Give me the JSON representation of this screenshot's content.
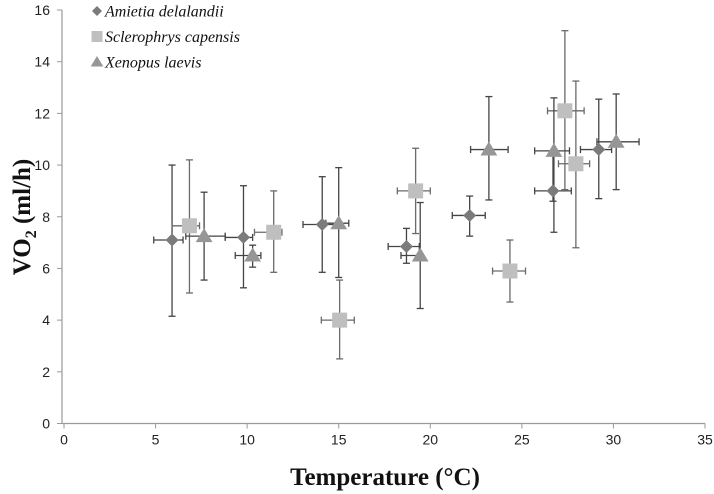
{
  "chart_data": {
    "type": "scatter",
    "title": "",
    "xlabel": "Temperature (°C)",
    "ylabel_main": "VO",
    "ylabel_sub": "2",
    "ylabel_rest": " (ml/h)",
    "xlim": [
      0,
      35
    ],
    "ylim": [
      0,
      16
    ],
    "xticks": [
      0,
      5,
      10,
      15,
      20,
      25,
      30,
      35
    ],
    "yticks": [
      0,
      2,
      4,
      6,
      8,
      10,
      12,
      14,
      16
    ],
    "grid": false,
    "legend_position": "top-left",
    "series": [
      {
        "name": "Amietia delalandii",
        "marker": "diamond",
        "color": "#7b7b7b",
        "points": [
          {
            "x": 5.9,
            "y": 7.1,
            "xlo": 4.9,
            "xhi": 6.5,
            "ylo": 4.15,
            "yhi": 10.0
          },
          {
            "x": 9.8,
            "y": 7.2,
            "xlo": 8.8,
            "xhi": 10.3,
            "ylo": 5.25,
            "yhi": 9.2
          },
          {
            "x": 14.1,
            "y": 7.7,
            "xlo": 13.05,
            "xhi": 15.1,
            "ylo": 5.85,
            "yhi": 9.55
          },
          {
            "x": 18.7,
            "y": 6.85,
            "xlo": 17.7,
            "xhi": 19.4,
            "ylo": 6.2,
            "yhi": 7.55
          },
          {
            "x": 22.15,
            "y": 8.05,
            "xlo": 21.2,
            "xhi": 23.0,
            "ylo": 7.25,
            "yhi": 8.8
          },
          {
            "x": 26.7,
            "y": 9.0,
            "xlo": 25.7,
            "xhi": 27.7,
            "ylo": 8.6,
            "yhi": 10.4
          },
          {
            "x": 29.2,
            "y": 10.6,
            "xlo": 28.2,
            "xhi": 29.9,
            "ylo": 8.7,
            "yhi": 12.55
          }
        ]
      },
      {
        "name": "Sclerophrys capensis",
        "marker": "square",
        "color": "#bfbfbf",
        "points": [
          {
            "x": 6.85,
            "y": 7.65,
            "xlo": 5.9,
            "xhi": 7.4,
            "ylo": 5.05,
            "yhi": 10.2
          },
          {
            "x": 11.45,
            "y": 7.4,
            "xlo": 10.4,
            "xhi": 11.9,
            "ylo": 5.85,
            "yhi": 9.0
          },
          {
            "x": 15.05,
            "y": 4.0,
            "xlo": 14.05,
            "xhi": 15.85,
            "ylo": 2.5,
            "yhi": 5.55
          },
          {
            "x": 19.2,
            "y": 9.0,
            "xlo": 18.2,
            "xhi": 20.0,
            "ylo": 7.35,
            "yhi": 10.65
          },
          {
            "x": 24.35,
            "y": 5.9,
            "xlo": 23.4,
            "xhi": 25.2,
            "ylo": 4.7,
            "yhi": 7.1
          },
          {
            "x": 27.35,
            "y": 12.1,
            "xlo": 26.4,
            "xhi": 28.4,
            "ylo": 9.05,
            "yhi": 15.2
          },
          {
            "x": 27.95,
            "y": 10.05,
            "xlo": 27.0,
            "xhi": 28.7,
            "ylo": 6.8,
            "yhi": 13.25
          }
        ]
      },
      {
        "name": "Xenopus laevis",
        "marker": "triangle",
        "color": "#969696",
        "points": [
          {
            "x": 7.65,
            "y": 7.25,
            "xlo": 6.65,
            "xhi": 8.8,
            "ylo": 5.55,
            "yhi": 8.95
          },
          {
            "x": 10.3,
            "y": 6.5,
            "xlo": 9.35,
            "xhi": 10.75,
            "ylo": 6.05,
            "yhi": 6.9
          },
          {
            "x": 15.0,
            "y": 7.75,
            "xlo": 14.3,
            "xhi": 15.55,
            "ylo": 5.65,
            "yhi": 9.9
          },
          {
            "x": 19.45,
            "y": 6.5,
            "xlo": 18.4,
            "xhi": 19.45,
            "ylo": 4.45,
            "yhi": 8.55
          },
          {
            "x": 23.2,
            "y": 10.6,
            "xlo": 22.2,
            "xhi": 24.25,
            "ylo": 8.65,
            "yhi": 12.65
          },
          {
            "x": 26.75,
            "y": 10.55,
            "xlo": 25.7,
            "xhi": 27.6,
            "ylo": 7.4,
            "yhi": 12.6
          },
          {
            "x": 30.15,
            "y": 10.9,
            "xlo": 29.1,
            "xhi": 31.4,
            "ylo": 9.05,
            "yhi": 12.75
          }
        ]
      }
    ]
  }
}
